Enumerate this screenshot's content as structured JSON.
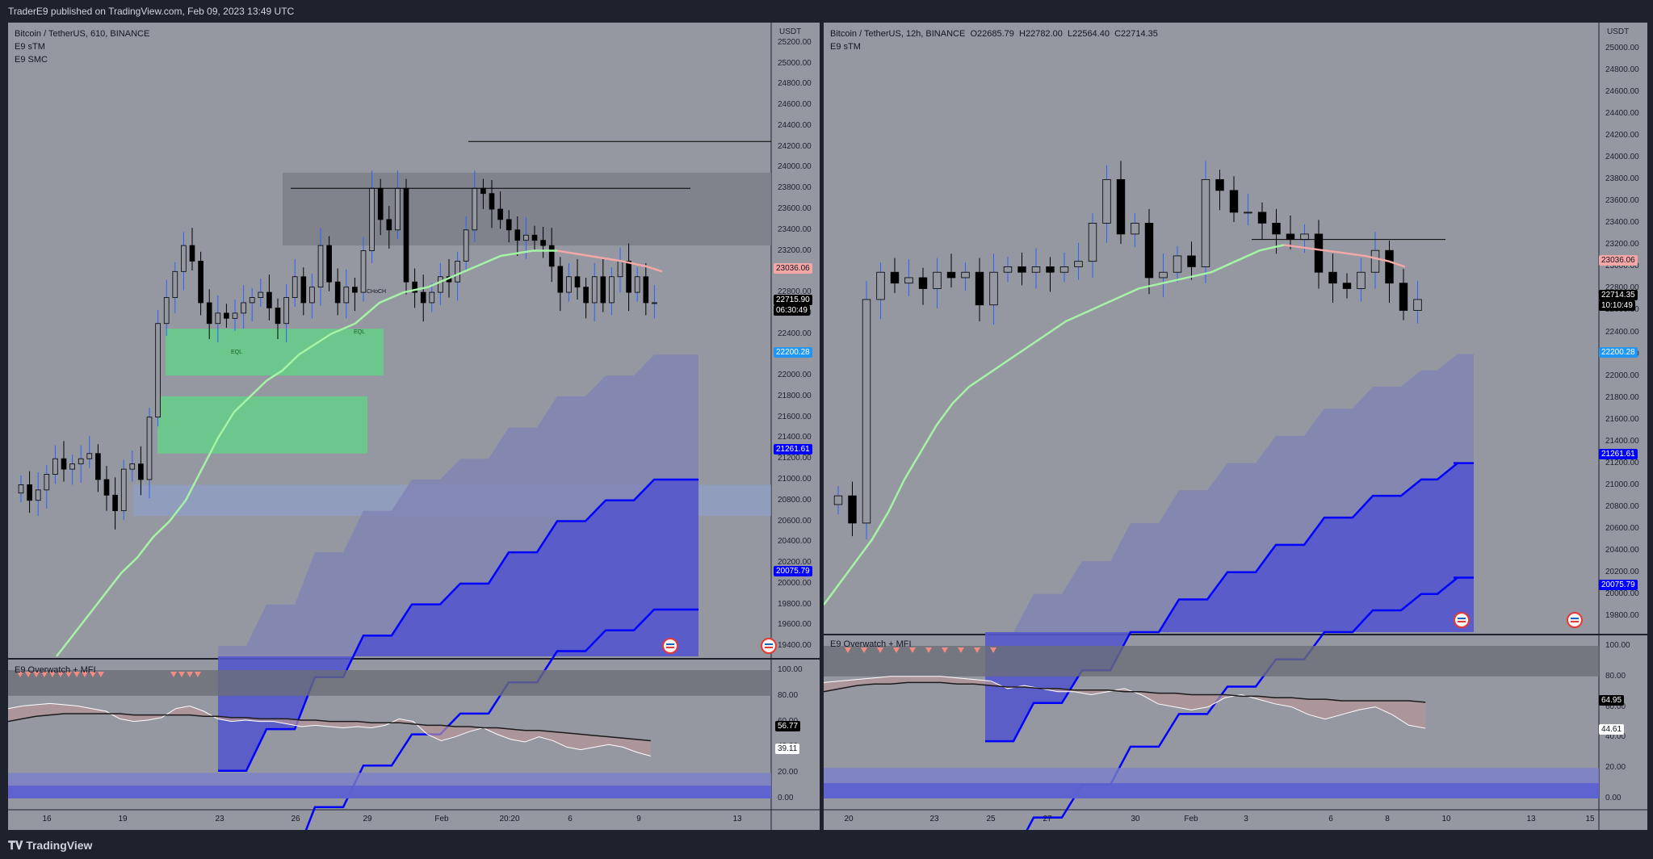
{
  "header": {
    "text": "TraderE9 published on TradingView.com, Feb 09, 2023 13:49 UTC"
  },
  "footer": {
    "logo_text": "TradingView"
  },
  "colors": {
    "bg": "#9598a1",
    "bull": "#9598a1",
    "bear": "#000000",
    "trail_up": "#a5f3a5",
    "trail_down": "#f4a7a7",
    "band_fill": "#7f82b5",
    "band_line": "#0000ff",
    "band_fill_dark": "#5558cc",
    "ob_green": "#66cc8a",
    "mfi_green": "#7ec38e",
    "mfi_red": "#b89698"
  },
  "left": {
    "title": "Bitcoin / TetherUS, 610, BINANCE",
    "indicators": [
      "E9 sTM",
      "E9 SMC"
    ],
    "currency": "USDT",
    "price_axis": [
      "25200.00",
      "25000.00",
      "24800.00",
      "24600.00",
      "24400.00",
      "24200.00",
      "24000.00",
      "23800.00",
      "23600.00",
      "23400.00",
      "23200.00",
      "23000.00",
      "22800.00",
      "22600.00",
      "22400.00",
      "22200.00",
      "22000.00",
      "21800.00",
      "21600.00",
      "21400.00",
      "21200.00",
      "21000.00",
      "20800.00",
      "20600.00",
      "20400.00",
      "20200.00",
      "20000.00",
      "19800.00",
      "19600.00",
      "19400.00"
    ],
    "price_tags": {
      "trail": "23036.06",
      "last": "22715.90",
      "countdown": "06:30:49",
      "band1": "22200.28",
      "band2": "21261.61",
      "band3": "20075.79"
    },
    "smc_labels": {
      "eql1": "EQL",
      "eql2": "EQL",
      "choch": "CHoCH"
    },
    "osc_title": "E9 Overwatch + MFI",
    "osc_axis": [
      "100.00",
      "80.00",
      "60.00",
      "40.00",
      "20.00",
      "0.00"
    ],
    "osc_tags": {
      "a": "56.77",
      "b": "39.11"
    },
    "dates": [
      "16",
      "19",
      "23",
      "26",
      "29",
      "Feb",
      "20:20",
      "6",
      "9",
      "13"
    ],
    "chart_data": {
      "type": "candlestick",
      "ylim": [
        19300,
        25300
      ],
      "closes": [
        20950,
        20800,
        20900,
        21050,
        21200,
        21100,
        21150,
        21200,
        21250,
        21000,
        20850,
        20700,
        21100,
        21150,
        21000,
        21600,
        22500,
        22750,
        23000,
        23250,
        23100,
        22700,
        22500,
        22600,
        22550,
        22600,
        22700,
        22750,
        22800,
        22650,
        22500,
        22750,
        22950,
        22700,
        22850,
        23250,
        22900,
        22700,
        22850,
        22800,
        23200,
        23800,
        23500,
        23400,
        23800,
        22900,
        22800,
        22700,
        22800,
        22950,
        22900,
        23100,
        23400,
        23800,
        23750,
        23600,
        23500,
        23400,
        23300,
        23350,
        23300,
        23250,
        23050,
        22800,
        22950,
        22850,
        22700,
        22950,
        22700,
        22950,
        23100,
        22800,
        22950,
        22700,
        22700
      ]
    }
  },
  "right": {
    "title": "Bitcoin / TetherUS, 12h, BINANCE",
    "ohlc": {
      "o": "O22685.79",
      "h": "H22782.00",
      "l": "L22564.40",
      "c": "C22714.35"
    },
    "indicators": [
      "E9 sTM"
    ],
    "currency": "USDT",
    "price_axis": [
      "25000.00",
      "24800.00",
      "24600.00",
      "24400.00",
      "24200.00",
      "24000.00",
      "23800.00",
      "23600.00",
      "23400.00",
      "23200.00",
      "23000.00",
      "22800.00",
      "22600.00",
      "22400.00",
      "22200.00",
      "22000.00",
      "21800.00",
      "21600.00",
      "21400.00",
      "21200.00",
      "21000.00",
      "20800.00",
      "20600.00",
      "20400.00",
      "20200.00",
      "20000.00",
      "19800.00"
    ],
    "price_tags": {
      "trail": "23036.06",
      "last": "22714.35",
      "countdown": "10:10:49",
      "band1": "22200.28",
      "band2": "21261.61",
      "band3": "20075.79"
    },
    "osc_title": "E9 Overwatch + MFI",
    "osc_axis": [
      "100.00",
      "80.00",
      "60.00",
      "40.00",
      "20.00",
      "0.00"
    ],
    "osc_tags": {
      "a": "64.95",
      "b": "44.61"
    },
    "dates": [
      "20",
      "23",
      "25",
      "27",
      "30",
      "Feb",
      "3",
      "6",
      "8",
      "10",
      "13",
      "15"
    ],
    "chart_data": {
      "type": "candlestick",
      "ylim": [
        19650,
        25150
      ],
      "closes": [
        20900,
        20650,
        22700,
        22950,
        22850,
        22900,
        22800,
        22950,
        22900,
        22950,
        22650,
        22950,
        23000,
        22950,
        23000,
        22950,
        23000,
        23050,
        23400,
        23800,
        23300,
        23400,
        22900,
        22950,
        23100,
        23000,
        23800,
        23700,
        23500,
        23500,
        23400,
        23300,
        23250,
        23300,
        22950,
        22850,
        22800,
        22950,
        23150,
        22850,
        22600,
        22700
      ]
    }
  }
}
